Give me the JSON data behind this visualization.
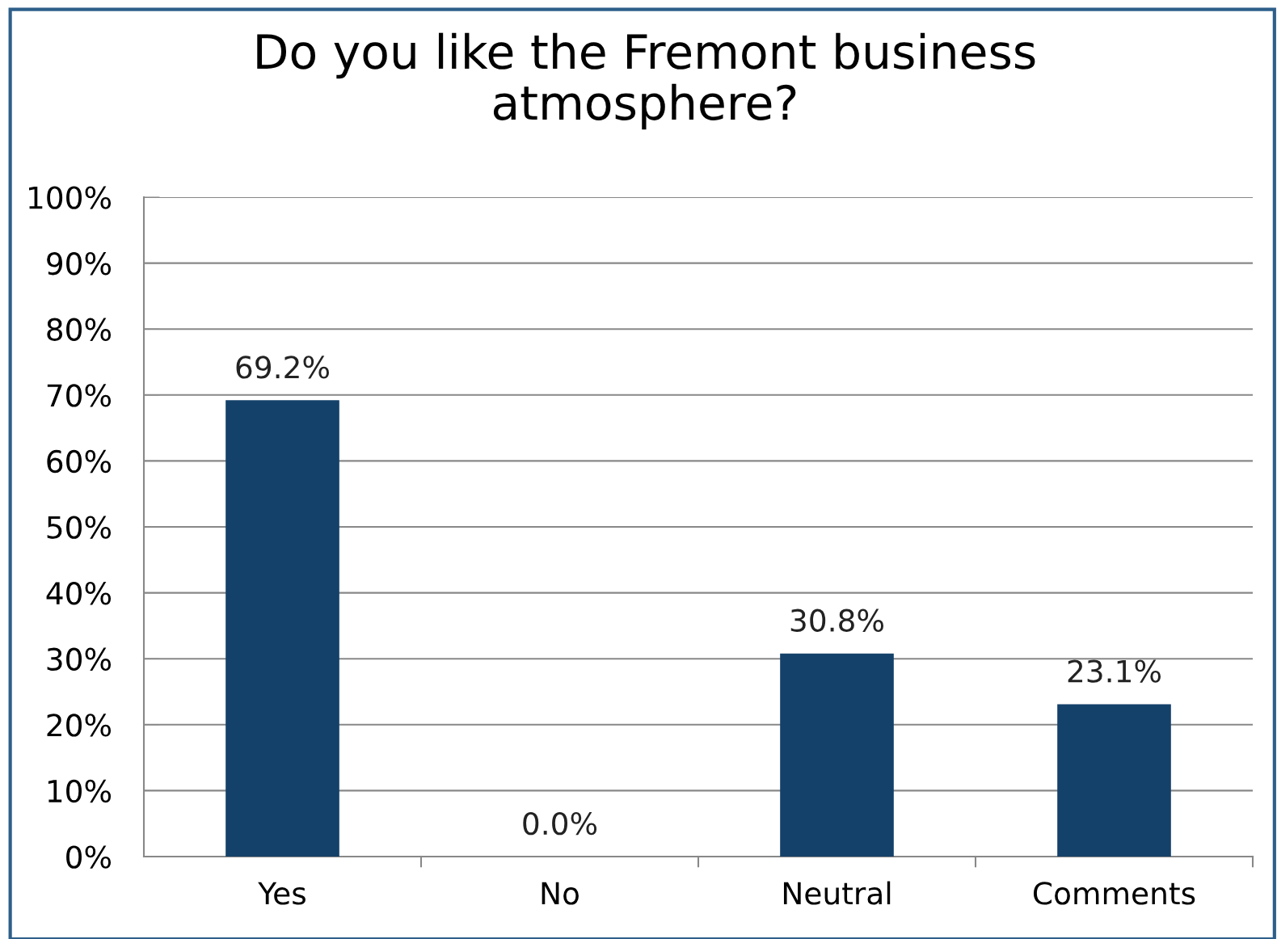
{
  "chart_data": {
    "type": "bar",
    "title": "Do you like the Fremont business\natmosphere?",
    "categories": [
      "Yes",
      "No",
      "Neutral",
      "Comments"
    ],
    "values": [
      69.2,
      0.0,
      30.8,
      23.1
    ],
    "value_labels": [
      "69.2%",
      "0.0%",
      "30.8%",
      "23.1%"
    ],
    "color": "#14416a",
    "ylim": [
      0,
      100
    ],
    "yticks": [
      {
        "value": 0,
        "label": "0%"
      },
      {
        "value": 10,
        "label": "10%"
      },
      {
        "value": 20,
        "label": "20%"
      },
      {
        "value": 30,
        "label": "30%"
      },
      {
        "value": 40,
        "label": "40%"
      },
      {
        "value": 50,
        "label": "50%"
      },
      {
        "value": 60,
        "label": "60%"
      },
      {
        "value": 70,
        "label": "70%"
      },
      {
        "value": 80,
        "label": "80%"
      },
      {
        "value": 90,
        "label": "90%"
      },
      {
        "value": 100,
        "label": "100%"
      }
    ],
    "grid": "y"
  }
}
